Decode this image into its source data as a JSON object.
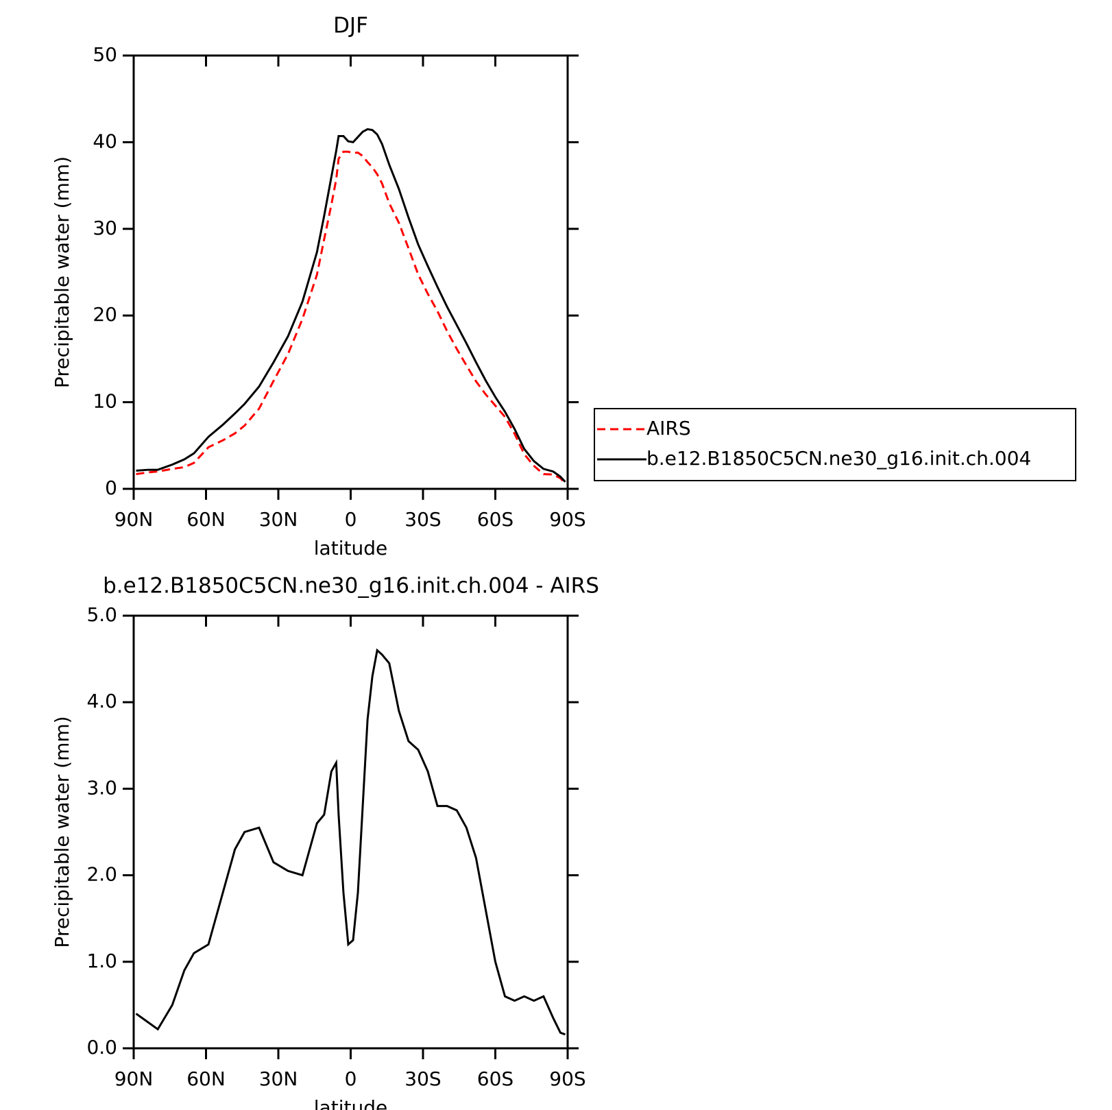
{
  "chart_data": [
    {
      "type": "line",
      "title": "DJF",
      "xlabel": "latitude",
      "ylabel": "Precipitable water (mm)",
      "x": [
        89,
        84,
        80,
        74,
        69,
        65,
        59,
        53,
        48,
        44,
        38,
        32,
        26,
        20,
        14,
        11,
        8,
        6,
        5,
        3,
        1,
        -1,
        -3,
        -5,
        -7,
        -9,
        -11,
        -13,
        -16,
        -20,
        -24,
        -28,
        -32,
        -36,
        -40,
        -44,
        -48,
        -52,
        -56,
        -60,
        -64,
        -68,
        -72,
        -76,
        -80,
        -84,
        -87,
        -89
      ],
      "xlim": [
        90,
        -90
      ],
      "xticks": [
        {
          "value": 90,
          "label": "90N"
        },
        {
          "value": 60,
          "label": "60N"
        },
        {
          "value": 30,
          "label": "30N"
        },
        0,
        {
          "value": -30,
          "label": "30S"
        },
        {
          "value": -60,
          "label": "60S"
        },
        {
          "value": -90,
          "label": "90S"
        }
      ],
      "ylim": [
        0,
        50
      ],
      "yticks": [
        0,
        10,
        20,
        30,
        40,
        50
      ],
      "legend": "outside-right",
      "series": [
        {
          "name": "AIRS",
          "color": "#ff0000",
          "line_style": "dashed",
          "values": [
            1.7,
            1.9,
            2.0,
            2.3,
            2.5,
            3.0,
            4.8,
            5.6,
            6.4,
            7.3,
            9.25,
            12.45,
            15.55,
            19.6,
            24.7,
            28.8,
            32.8,
            35.7,
            38.1,
            38.9,
            38.9,
            38.75,
            38.8,
            38.4,
            37.7,
            37.1,
            36.3,
            35.25,
            32.95,
            30.7,
            27.75,
            24.75,
            22.5,
            20.5,
            18.2,
            16.15,
            14.25,
            12.4,
            10.9,
            9.6,
            8.3,
            6.35,
            4.0,
            2.65,
            1.7,
            1.65,
            1.22,
            0.64
          ]
        },
        {
          "name": "b.e12.B1850C5CN.ne30_g16.init.ch.004",
          "color": "#000000",
          "line_style": "solid",
          "values": [
            2.1,
            2.2,
            2.2,
            2.8,
            3.4,
            4.1,
            6.0,
            7.4,
            8.7,
            9.8,
            11.8,
            14.6,
            17.6,
            21.6,
            27.3,
            31.5,
            36.0,
            39.0,
            40.7,
            40.7,
            40.1,
            40.0,
            40.6,
            41.2,
            41.5,
            41.4,
            40.9,
            39.8,
            37.4,
            34.6,
            31.3,
            28.2,
            25.7,
            23.3,
            21.0,
            18.9,
            16.8,
            14.6,
            12.5,
            10.6,
            8.9,
            6.9,
            4.6,
            3.2,
            2.3,
            2.0,
            1.4,
            0.8
          ]
        }
      ]
    },
    {
      "type": "line",
      "title": "b.e12.B1850C5CN.ne30_g16.init.ch.004 - AIRS",
      "xlabel": "latitude",
      "ylabel": "Precipitable water (mm)",
      "x": [
        89,
        84,
        80,
        74,
        69,
        65,
        59,
        53,
        48,
        44,
        38,
        32,
        26,
        20,
        14,
        11,
        8,
        6,
        5,
        3,
        1,
        -1,
        -3,
        -5,
        -7,
        -9,
        -11,
        -13,
        -16,
        -20,
        -24,
        -28,
        -32,
        -36,
        -40,
        -44,
        -48,
        -52,
        -56,
        -60,
        -64,
        -68,
        -72,
        -76,
        -80,
        -84,
        -87,
        -89
      ],
      "xlim": [
        90,
        -90
      ],
      "xticks": [
        {
          "value": 90,
          "label": "90N"
        },
        {
          "value": 60,
          "label": "60N"
        },
        {
          "value": 30,
          "label": "30N"
        },
        0,
        {
          "value": -30,
          "label": "30S"
        },
        {
          "value": -60,
          "label": "60S"
        },
        {
          "value": -90,
          "label": "90S"
        }
      ],
      "ylim": [
        0,
        5
      ],
      "yticks": [
        {
          "value": 0,
          "label": "0.0"
        },
        {
          "value": 1,
          "label": "1.0"
        },
        {
          "value": 2,
          "label": "2.0"
        },
        {
          "value": 3,
          "label": "3.0"
        },
        {
          "value": 4,
          "label": "4.0"
        },
        {
          "value": 5,
          "label": "5.0"
        }
      ],
      "color": "#000000",
      "values": [
        0.4,
        0.3,
        0.22,
        0.5,
        0.9,
        1.1,
        1.2,
        1.8,
        2.3,
        2.5,
        2.55,
        2.15,
        2.05,
        2.0,
        2.6,
        2.7,
        3.2,
        3.3,
        2.7,
        1.8,
        1.2,
        1.25,
        1.8,
        2.8,
        3.8,
        4.3,
        4.6,
        4.55,
        4.45,
        3.9,
        3.55,
        3.45,
        3.2,
        2.8,
        2.8,
        2.75,
        2.55,
        2.2,
        1.6,
        1.0,
        0.6,
        0.55,
        0.6,
        0.55,
        0.6,
        0.35,
        0.18,
        0.16
      ]
    }
  ]
}
